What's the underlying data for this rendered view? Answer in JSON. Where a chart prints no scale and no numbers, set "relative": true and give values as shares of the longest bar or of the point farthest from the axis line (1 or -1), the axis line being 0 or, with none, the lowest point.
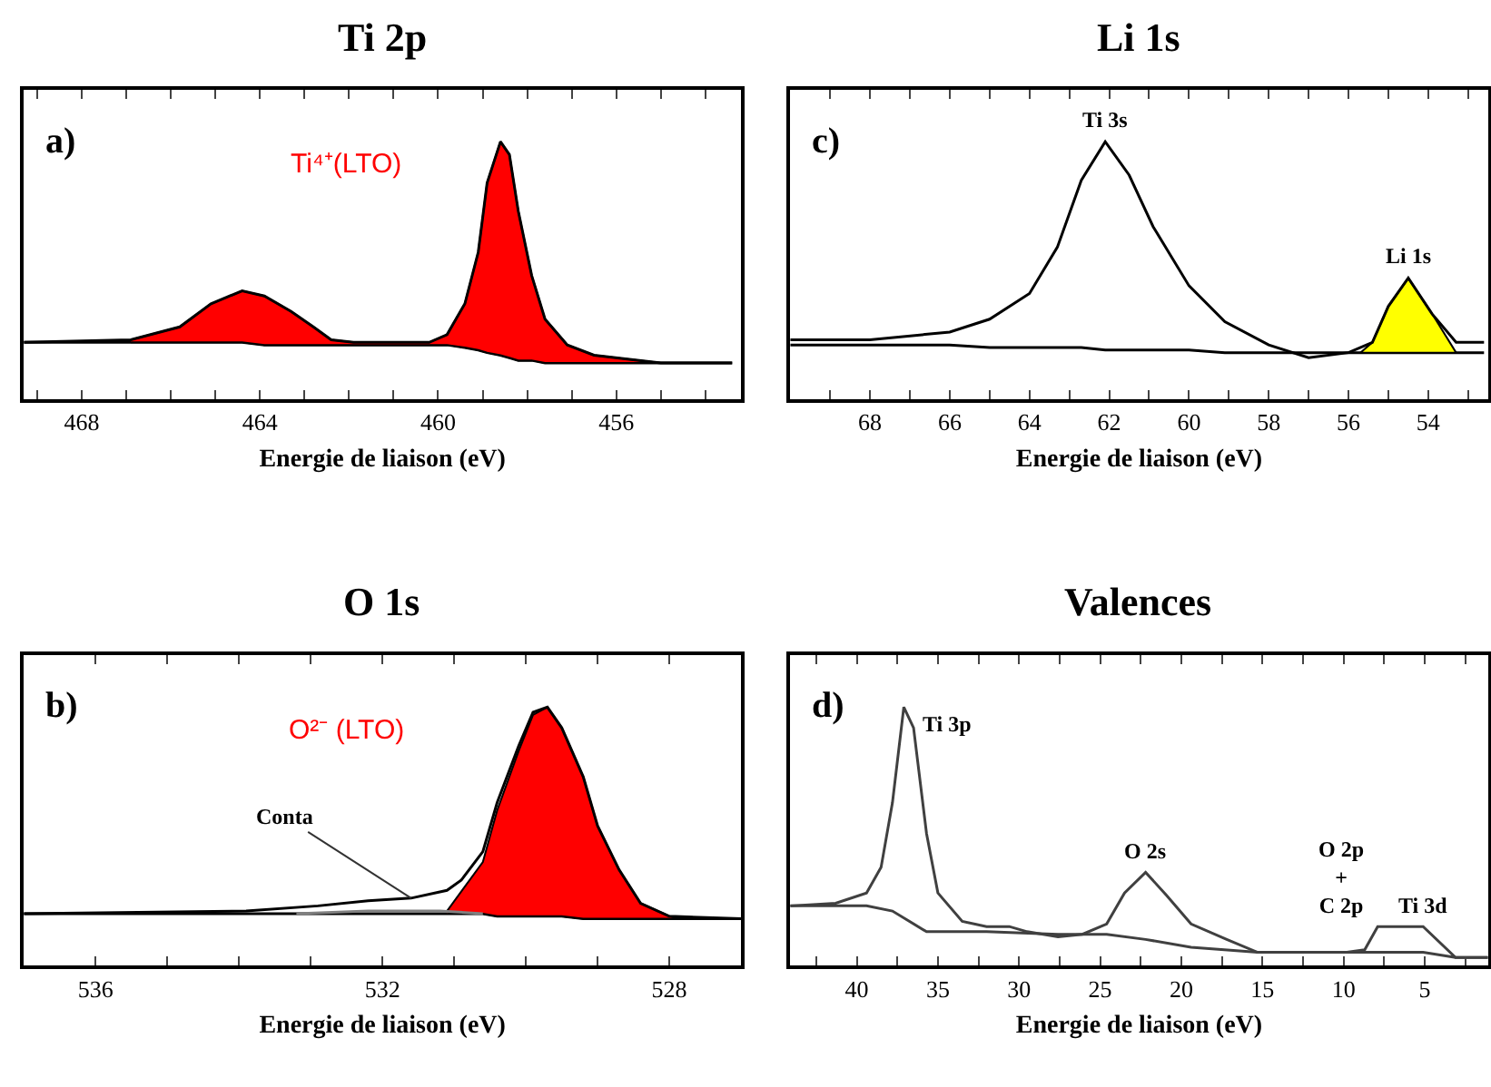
{
  "chart_data": [
    {
      "type": "line",
      "title": "Ti 2p",
      "xlabel": "Energie de liaison (eV)",
      "relative": true,
      "tick_labels": "x",
      "xlim": [
        469.3,
        453.2
      ],
      "xticks": [
        {
          "value": 469,
          "label": null
        },
        468,
        {
          "value": 467,
          "label": null
        },
        {
          "value": 466,
          "label": null
        },
        {
          "value": 465,
          "label": null
        },
        464,
        {
          "value": 463,
          "label": null
        },
        {
          "value": 462,
          "label": null
        },
        {
          "value": 461,
          "label": null
        },
        460,
        {
          "value": 459,
          "label": null
        },
        {
          "value": 458,
          "label": null
        },
        {
          "value": 457,
          "label": null
        },
        456,
        {
          "value": 455,
          "label": null
        },
        {
          "value": 454,
          "label": null
        }
      ],
      "annotations": [
        "a)",
        "Ti⁴⁺(LTO)"
      ],
      "series": [
        {
          "color": "#000000",
          "x": [
            469.3,
            466.9,
            465.8,
            465.1,
            464.4,
            463.9,
            463.3,
            462.8,
            462.4,
            461.9,
            460.2,
            459.8,
            459.4,
            459.1,
            458.9,
            458.6,
            458.4,
            458.2,
            457.9,
            457.6,
            457.1,
            456.5,
            455.0,
            453.4
          ],
          "values": [
            0.22,
            0.22,
            0.22,
            0.22,
            0.22,
            0.21,
            0.21,
            0.21,
            0.21,
            0.21,
            0.21,
            0.21,
            0.2,
            0.19,
            0.18,
            0.17,
            0.16,
            0.15,
            0.15,
            0.14,
            0.14,
            0.14,
            0.14,
            0.14
          ]
        },
        {
          "type": "area",
          "color": "#ff0000",
          "x": [
            466.9,
            465.8,
            465.1,
            464.4,
            463.9,
            463.3,
            462.8,
            462.4,
            461.9,
            460.2,
            459.8,
            459.4,
            459.1,
            458.9,
            458.6,
            458.4,
            458.2,
            457.9,
            457.6,
            457.1,
            456.5,
            455.0
          ],
          "values": [
            0.23,
            0.28,
            0.37,
            0.42,
            0.4,
            0.34,
            0.28,
            0.23,
            0.22,
            0.22,
            0.25,
            0.37,
            0.57,
            0.84,
            1.0,
            0.95,
            0.73,
            0.48,
            0.31,
            0.21,
            0.17,
            0.14
          ]
        },
        {
          "color": "#000000",
          "x": [
            469.3,
            466.9,
            465.8,
            465.1,
            464.4,
            463.9,
            463.3,
            462.8,
            462.4,
            461.9,
            460.2,
            459.8,
            459.4,
            459.1,
            458.9,
            458.6,
            458.4,
            458.2,
            457.9,
            457.6,
            457.1,
            456.5,
            455.0,
            453.4
          ],
          "values": [
            0.22,
            0.23,
            0.28,
            0.37,
            0.42,
            0.4,
            0.34,
            0.28,
            0.23,
            0.22,
            0.22,
            0.25,
            0.37,
            0.57,
            0.84,
            1.0,
            0.95,
            0.73,
            0.48,
            0.31,
            0.21,
            0.17,
            0.14,
            0.14
          ]
        }
      ]
    },
    {
      "type": "line",
      "title": "Li 1s",
      "xlabel": "Energie de liaison (eV)",
      "relative": true,
      "tick_labels": "x",
      "xlim": [
        70.0,
        52.5
      ],
      "xticks": [
        {
          "value": 69,
          "label": null
        },
        68,
        {
          "value": 67,
          "label": null
        },
        66,
        {
          "value": 65,
          "label": null
        },
        64,
        {
          "value": 63,
          "label": null
        },
        62,
        {
          "value": 61,
          "label": null
        },
        60,
        {
          "value": 59,
          "label": null
        },
        58,
        {
          "value": 57,
          "label": null
        },
        56,
        {
          "value": 55,
          "label": null
        },
        54,
        {
          "value": 53,
          "label": null
        }
      ],
      "annotations": [
        "c)",
        {
          "text": "Ti 3s",
          "x": 62.1,
          "y": 1.0
        },
        {
          "text": "Li 1s",
          "x": 54.5,
          "y": 0.47
        }
      ],
      "series": [
        {
          "color": "#000000",
          "x": [
            70.0,
            68.0,
            66.0,
            65.0,
            64.0,
            63.3,
            62.7,
            62.1,
            61.5,
            60.9,
            60.0,
            59.1,
            58.0,
            57.0,
            56.0,
            55.4,
            55.0,
            54.5,
            53.9,
            53.3,
            52.6
          ],
          "values": [
            0.21,
            0.21,
            0.21,
            0.2,
            0.2,
            0.2,
            0.2,
            0.19,
            0.19,
            0.19,
            0.19,
            0.18,
            0.18,
            0.18,
            0.18,
            0.18,
            0.18,
            0.18,
            0.18,
            0.18,
            0.18
          ]
        },
        {
          "type": "area",
          "color": "#ffff00",
          "x": [
            55.7,
            55.4,
            55.0,
            54.5,
            53.9,
            53.3
          ],
          "values": [
            0.18,
            0.22,
            0.36,
            0.47,
            0.33,
            0.18
          ]
        },
        {
          "color": "#000000",
          "x": [
            70.0,
            68.0,
            66.0,
            65.0,
            64.0,
            63.3,
            62.7,
            62.1,
            61.5,
            60.9,
            60.0,
            59.1,
            58.0,
            57.0,
            56.0,
            55.4,
            55.0,
            54.5,
            53.9,
            53.3,
            52.6
          ],
          "values": [
            0.23,
            0.23,
            0.26,
            0.31,
            0.41,
            0.59,
            0.85,
            1.0,
            0.87,
            0.67,
            0.44,
            0.3,
            0.21,
            0.16,
            0.18,
            0.22,
            0.36,
            0.47,
            0.33,
            0.22,
            0.22
          ]
        }
      ]
    },
    {
      "type": "line",
      "title": "O 1s",
      "xlabel": "Energie de liaison (eV)",
      "relative": true,
      "tick_labels": "x",
      "xlim": [
        537.0,
        527.0
      ],
      "xticks": [
        {
          "value": 537,
          "label": null
        },
        536,
        {
          "value": 535,
          "label": null
        },
        {
          "value": 534,
          "label": null
        },
        {
          "value": 533,
          "label": null
        },
        532,
        {
          "value": 531,
          "label": null
        },
        {
          "value": 530,
          "label": null
        },
        {
          "value": 529,
          "label": null
        },
        528
      ],
      "annotations": [
        "b)",
        "O²⁻ (LTO)",
        {
          "text": "Conta",
          "x": 531.6,
          "y": 0.26
        }
      ],
      "series": [
        {
          "color": "#000000",
          "x": [
            537.0,
            533.9,
            532.9,
            532.2,
            531.6,
            531.1,
            530.9,
            530.6,
            530.4,
            530.1,
            529.9,
            529.7,
            529.5,
            529.2,
            529.0,
            528.7,
            528.4,
            528.0,
            527.0
          ],
          "values": [
            0.2,
            0.2,
            0.2,
            0.2,
            0.2,
            0.2,
            0.2,
            0.2,
            0.19,
            0.19,
            0.19,
            0.19,
            0.19,
            0.18,
            0.18,
            0.18,
            0.18,
            0.18,
            0.18
          ]
        },
        {
          "type": "area",
          "color": "#ff0000",
          "x": [
            531.1,
            530.6,
            530.4,
            530.1,
            529.9,
            529.7,
            529.5,
            529.2,
            529.0,
            528.7,
            528.4,
            528.0,
            527.8
          ],
          "values": [
            0.21,
            0.4,
            0.6,
            0.83,
            0.97,
            1.0,
            0.92,
            0.73,
            0.54,
            0.37,
            0.24,
            0.19,
            0.18
          ]
        },
        {
          "color": "#808080",
          "x": [
            533.2,
            532.2,
            531.2,
            530.6
          ],
          "values": [
            0.2,
            0.21,
            0.21,
            0.2
          ]
        },
        {
          "color": "#000000",
          "x": [
            537.0,
            533.9,
            532.9,
            532.2,
            531.6,
            531.1,
            530.9,
            530.6,
            530.4,
            530.1,
            529.9,
            529.7,
            529.5,
            529.2,
            529.0,
            528.7,
            528.4,
            528.0,
            527.0
          ],
          "values": [
            0.2,
            0.21,
            0.23,
            0.25,
            0.26,
            0.29,
            0.33,
            0.44,
            0.63,
            0.85,
            0.98,
            1.0,
            0.92,
            0.73,
            0.54,
            0.37,
            0.24,
            0.19,
            0.18
          ]
        }
      ]
    },
    {
      "type": "line",
      "title": "Valences",
      "xlabel": "Energie de liaison (eV)",
      "relative": true,
      "tick_labels": "x",
      "xlim": [
        44.1,
        1.1
      ],
      "xticks": [
        {
          "value": 42.5,
          "label": null
        },
        40,
        {
          "value": 37.5,
          "label": null
        },
        35,
        {
          "value": 32.5,
          "label": null
        },
        30,
        {
          "value": 27.5,
          "label": null
        },
        25,
        {
          "value": 22.5,
          "label": null
        },
        20,
        {
          "value": 17.5,
          "label": null
        },
        15,
        {
          "value": 12.5,
          "label": null
        },
        10,
        {
          "value": 7.5,
          "label": null
        },
        5,
        {
          "value": 2.5,
          "label": null
        }
      ],
      "annotations": [
        "d)",
        {
          "text": "Ti 3p",
          "x": 37.1,
          "y": 1.0
        },
        {
          "text": "O 2s",
          "x": 22.2,
          "y": 0.36
        },
        {
          "text": "O 2p\n+\nC 2p",
          "x": 7.9,
          "y": 0.15
        },
        {
          "text": "Ti 3d",
          "x": 5.1,
          "y": 0.15
        }
      ],
      "series": [
        {
          "color": "#404040",
          "x": [
            44.1,
            39.4,
            37.8,
            35.7,
            32.0,
            27.6,
            24.6,
            22.2,
            19.4,
            15.3,
            8.7,
            5.1,
            3.1,
            1.1
          ],
          "values": [
            0.23,
            0.23,
            0.21,
            0.13,
            0.13,
            0.12,
            0.12,
            0.1,
            0.07,
            0.05,
            0.05,
            0.05,
            0.03,
            0.03
          ]
        },
        {
          "color": "#404040",
          "x": [
            44.1,
            41.3,
            39.4,
            38.5,
            37.8,
            37.1,
            36.5,
            35.7,
            35.0,
            33.5,
            32.0,
            30.6,
            29.5,
            27.6,
            26.1,
            24.6,
            23.5,
            22.2,
            20.9,
            19.4,
            17.2,
            15.3,
            9.8,
            8.7,
            7.9,
            6.8,
            5.1,
            3.1,
            1.1
          ],
          "values": [
            0.23,
            0.24,
            0.28,
            0.38,
            0.63,
            1.0,
            0.92,
            0.51,
            0.28,
            0.17,
            0.15,
            0.15,
            0.13,
            0.11,
            0.12,
            0.16,
            0.28,
            0.36,
            0.27,
            0.16,
            0.1,
            0.05,
            0.05,
            0.06,
            0.15,
            0.15,
            0.15,
            0.03,
            0.03
          ]
        }
      ]
    }
  ]
}
